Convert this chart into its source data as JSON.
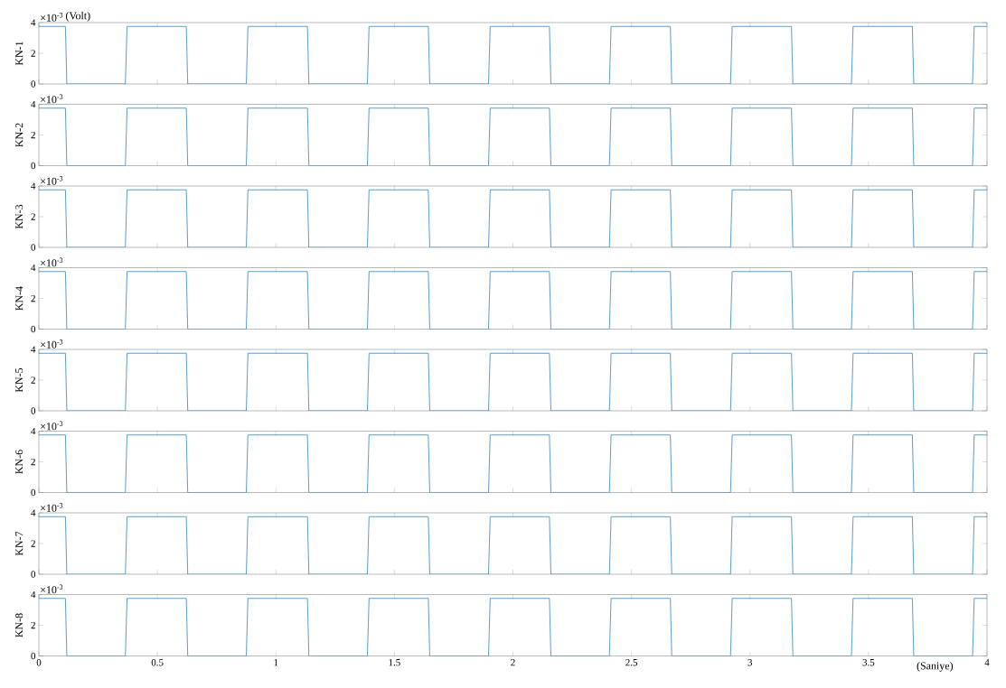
{
  "chart_data": [
    {
      "type": "line",
      "ylabel": "KN-1",
      "annotations": [
        "×10$^{-3}$",
        "(Volt)"
      ],
      "color": "#2f86c3",
      "line_style": "solid",
      "marker": "none",
      "tick_labels": "y",
      "x": [
        0,
        0.112,
        0.118,
        0.365,
        0.372,
        0.622,
        0.628,
        0.875,
        0.882,
        1.133,
        1.139,
        1.386,
        1.393,
        1.643,
        1.649,
        1.897,
        1.904,
        2.154,
        2.16,
        2.407,
        2.414,
        2.664,
        2.67,
        2.918,
        2.925,
        3.175,
        3.181,
        3.428,
        3.435,
        3.685,
        3.691,
        3.939,
        3.946,
        4
      ],
      "values": [
        3.75,
        3.75,
        0,
        0,
        3.75,
        3.75,
        0,
        0,
        3.75,
        3.75,
        0,
        0,
        3.75,
        3.75,
        0,
        0,
        3.75,
        3.75,
        0,
        0,
        3.75,
        3.75,
        0,
        0,
        3.75,
        3.75,
        0,
        0,
        3.75,
        3.75,
        0,
        0,
        3.75,
        3.75
      ],
      "xlim": [
        0,
        4
      ],
      "ylim": [
        0,
        4
      ],
      "xticks": [
        0,
        0.5,
        1,
        1.5,
        2,
        2.5,
        3,
        3.5,
        4
      ],
      "yticks": [
        0,
        2,
        4
      ]
    },
    {
      "type": "line",
      "ylabel": "KN-2",
      "annotations": [
        "×10$^{-3}$"
      ],
      "color": "#2f86c3",
      "line_style": "solid",
      "marker": "none",
      "tick_labels": "y",
      "x": [
        0,
        0.112,
        0.118,
        0.365,
        0.372,
        0.622,
        0.628,
        0.875,
        0.882,
        1.133,
        1.139,
        1.386,
        1.393,
        1.643,
        1.649,
        1.897,
        1.904,
        2.154,
        2.16,
        2.407,
        2.414,
        2.664,
        2.67,
        2.918,
        2.925,
        3.175,
        3.181,
        3.428,
        3.435,
        3.685,
        3.691,
        3.939,
        3.946,
        4
      ],
      "values": [
        3.75,
        3.75,
        0,
        0,
        3.75,
        3.75,
        0,
        0,
        3.75,
        3.75,
        0,
        0,
        3.75,
        3.75,
        0,
        0,
        3.75,
        3.75,
        0,
        0,
        3.75,
        3.75,
        0,
        0,
        3.75,
        3.75,
        0,
        0,
        3.75,
        3.75,
        0,
        0,
        3.75,
        3.75
      ],
      "xlim": [
        0,
        4
      ],
      "ylim": [
        0,
        4
      ],
      "xticks": [
        0,
        0.5,
        1,
        1.5,
        2,
        2.5,
        3,
        3.5,
        4
      ],
      "yticks": [
        0,
        2,
        4
      ]
    },
    {
      "type": "line",
      "ylabel": "KN-3",
      "annotations": [
        "×10$^{-3}$"
      ],
      "color": "#2f86c3",
      "line_style": "solid",
      "marker": "none",
      "tick_labels": "y",
      "x": [
        0,
        0.112,
        0.118,
        0.365,
        0.372,
        0.622,
        0.628,
        0.875,
        0.882,
        1.133,
        1.139,
        1.386,
        1.393,
        1.643,
        1.649,
        1.897,
        1.904,
        2.154,
        2.16,
        2.407,
        2.414,
        2.664,
        2.67,
        2.918,
        2.925,
        3.175,
        3.181,
        3.428,
        3.435,
        3.685,
        3.691,
        3.939,
        3.946,
        4
      ],
      "values": [
        3.75,
        3.75,
        0,
        0,
        3.75,
        3.75,
        0,
        0,
        3.75,
        3.75,
        0,
        0,
        3.75,
        3.75,
        0,
        0,
        3.75,
        3.75,
        0,
        0,
        3.75,
        3.75,
        0,
        0,
        3.75,
        3.75,
        0,
        0,
        3.75,
        3.75,
        0,
        0,
        3.75,
        3.75
      ],
      "xlim": [
        0,
        4
      ],
      "ylim": [
        0,
        4
      ],
      "xticks": [
        0,
        0.5,
        1,
        1.5,
        2,
        2.5,
        3,
        3.5,
        4
      ],
      "yticks": [
        0,
        2,
        4
      ]
    },
    {
      "type": "line",
      "ylabel": "KN-4",
      "annotations": [
        "×10$^{-3}$"
      ],
      "color": "#2f86c3",
      "line_style": "solid",
      "marker": "none",
      "tick_labels": "y",
      "x": [
        0,
        0.112,
        0.118,
        0.365,
        0.372,
        0.622,
        0.628,
        0.875,
        0.882,
        1.133,
        1.139,
        1.386,
        1.393,
        1.643,
        1.649,
        1.897,
        1.904,
        2.154,
        2.16,
        2.407,
        2.414,
        2.664,
        2.67,
        2.918,
        2.925,
        3.175,
        3.181,
        3.428,
        3.435,
        3.685,
        3.691,
        3.939,
        3.946,
        4
      ],
      "values": [
        3.75,
        3.75,
        0,
        0,
        3.75,
        3.75,
        0,
        0,
        3.75,
        3.75,
        0,
        0,
        3.75,
        3.75,
        0,
        0,
        3.75,
        3.75,
        0,
        0,
        3.75,
        3.75,
        0,
        0,
        3.75,
        3.75,
        0,
        0,
        3.75,
        3.75,
        0,
        0,
        3.75,
        3.75
      ],
      "xlim": [
        0,
        4
      ],
      "ylim": [
        0,
        4
      ],
      "xticks": [
        0,
        0.5,
        1,
        1.5,
        2,
        2.5,
        3,
        3.5,
        4
      ],
      "yticks": [
        0,
        2,
        4
      ]
    },
    {
      "type": "line",
      "ylabel": "KN-5",
      "annotations": [
        "×10$^{-3}$"
      ],
      "color": "#2f86c3",
      "line_style": "solid",
      "marker": "none",
      "tick_labels": "y",
      "x": [
        0,
        0.112,
        0.118,
        0.365,
        0.372,
        0.622,
        0.628,
        0.875,
        0.882,
        1.133,
        1.139,
        1.386,
        1.393,
        1.643,
        1.649,
        1.897,
        1.904,
        2.154,
        2.16,
        2.407,
        2.414,
        2.664,
        2.67,
        2.918,
        2.925,
        3.175,
        3.181,
        3.428,
        3.435,
        3.685,
        3.691,
        3.939,
        3.946,
        4
      ],
      "values": [
        3.75,
        3.75,
        0,
        0,
        3.75,
        3.75,
        0,
        0,
        3.75,
        3.75,
        0,
        0,
        3.75,
        3.75,
        0,
        0,
        3.75,
        3.75,
        0,
        0,
        3.75,
        3.75,
        0,
        0,
        3.75,
        3.75,
        0,
        0,
        3.75,
        3.75,
        0,
        0,
        3.75,
        3.75
      ],
      "xlim": [
        0,
        4
      ],
      "ylim": [
        0,
        4
      ],
      "xticks": [
        0,
        0.5,
        1,
        1.5,
        2,
        2.5,
        3,
        3.5,
        4
      ],
      "yticks": [
        0,
        2,
        4
      ]
    },
    {
      "type": "line",
      "ylabel": "KN-6",
      "annotations": [
        "×10$^{-3}$"
      ],
      "color": "#2f86c3",
      "line_style": "solid",
      "marker": "none",
      "tick_labels": "y",
      "x": [
        0,
        0.112,
        0.118,
        0.365,
        0.372,
        0.622,
        0.628,
        0.875,
        0.882,
        1.133,
        1.139,
        1.386,
        1.393,
        1.643,
        1.649,
        1.897,
        1.904,
        2.154,
        2.16,
        2.407,
        2.414,
        2.664,
        2.67,
        2.918,
        2.925,
        3.175,
        3.181,
        3.428,
        3.435,
        3.685,
        3.691,
        3.939,
        3.946,
        4
      ],
      "values": [
        3.75,
        3.75,
        0,
        0,
        3.75,
        3.75,
        0,
        0,
        3.75,
        3.75,
        0,
        0,
        3.75,
        3.75,
        0,
        0,
        3.75,
        3.75,
        0,
        0,
        3.75,
        3.75,
        0,
        0,
        3.75,
        3.75,
        0,
        0,
        3.75,
        3.75,
        0,
        0,
        3.75,
        3.75
      ],
      "xlim": [
        0,
        4
      ],
      "ylim": [
        0,
        4
      ],
      "xticks": [
        0,
        0.5,
        1,
        1.5,
        2,
        2.5,
        3,
        3.5,
        4
      ],
      "yticks": [
        0,
        2,
        4
      ]
    },
    {
      "type": "line",
      "ylabel": "KN-7",
      "annotations": [
        "×10$^{-3}$"
      ],
      "color": "#2f86c3",
      "line_style": "solid",
      "marker": "none",
      "tick_labels": "y",
      "x": [
        0,
        0.112,
        0.118,
        0.365,
        0.372,
        0.622,
        0.628,
        0.875,
        0.882,
        1.133,
        1.139,
        1.386,
        1.393,
        1.643,
        1.649,
        1.897,
        1.904,
        2.154,
        2.16,
        2.407,
        2.414,
        2.664,
        2.67,
        2.918,
        2.925,
        3.175,
        3.181,
        3.428,
        3.435,
        3.685,
        3.691,
        3.939,
        3.946,
        4
      ],
      "values": [
        3.75,
        3.75,
        0,
        0,
        3.75,
        3.75,
        0,
        0,
        3.75,
        3.75,
        0,
        0,
        3.75,
        3.75,
        0,
        0,
        3.75,
        3.75,
        0,
        0,
        3.75,
        3.75,
        0,
        0,
        3.75,
        3.75,
        0,
        0,
        3.75,
        3.75,
        0,
        0,
        3.75,
        3.75
      ],
      "xlim": [
        0,
        4
      ],
      "ylim": [
        0,
        4
      ],
      "xticks": [
        0,
        0.5,
        1,
        1.5,
        2,
        2.5,
        3,
        3.5,
        4
      ],
      "yticks": [
        0,
        2,
        4
      ]
    },
    {
      "type": "line",
      "ylabel": "KN-8",
      "xlabel": "(Saniye)",
      "annotations": [
        "×10$^{-3}$"
      ],
      "color": "#2f86c3",
      "line_style": "solid",
      "marker": "none",
      "x": [
        0,
        0.112,
        0.118,
        0.365,
        0.372,
        0.622,
        0.628,
        0.875,
        0.882,
        1.133,
        1.139,
        1.386,
        1.393,
        1.643,
        1.649,
        1.897,
        1.904,
        2.154,
        2.16,
        2.407,
        2.414,
        2.664,
        2.67,
        2.918,
        2.925,
        3.175,
        3.181,
        3.428,
        3.435,
        3.685,
        3.691,
        3.939,
        3.946,
        4
      ],
      "values": [
        3.75,
        3.75,
        0,
        0,
        3.75,
        3.75,
        0,
        0,
        3.75,
        3.75,
        0,
        0,
        3.75,
        3.75,
        0,
        0,
        3.75,
        3.75,
        0,
        0,
        3.75,
        3.75,
        0,
        0,
        3.75,
        3.75,
        0,
        0,
        3.75,
        3.75,
        0,
        0,
        3.75,
        3.75
      ],
      "xlim": [
        0,
        4
      ],
      "ylim": [
        0,
        4
      ],
      "xticks": [
        0,
        0.5,
        1,
        1.5,
        2,
        2.5,
        3,
        3.5,
        4
      ],
      "yticks": [
        0,
        2,
        4
      ]
    }
  ]
}
